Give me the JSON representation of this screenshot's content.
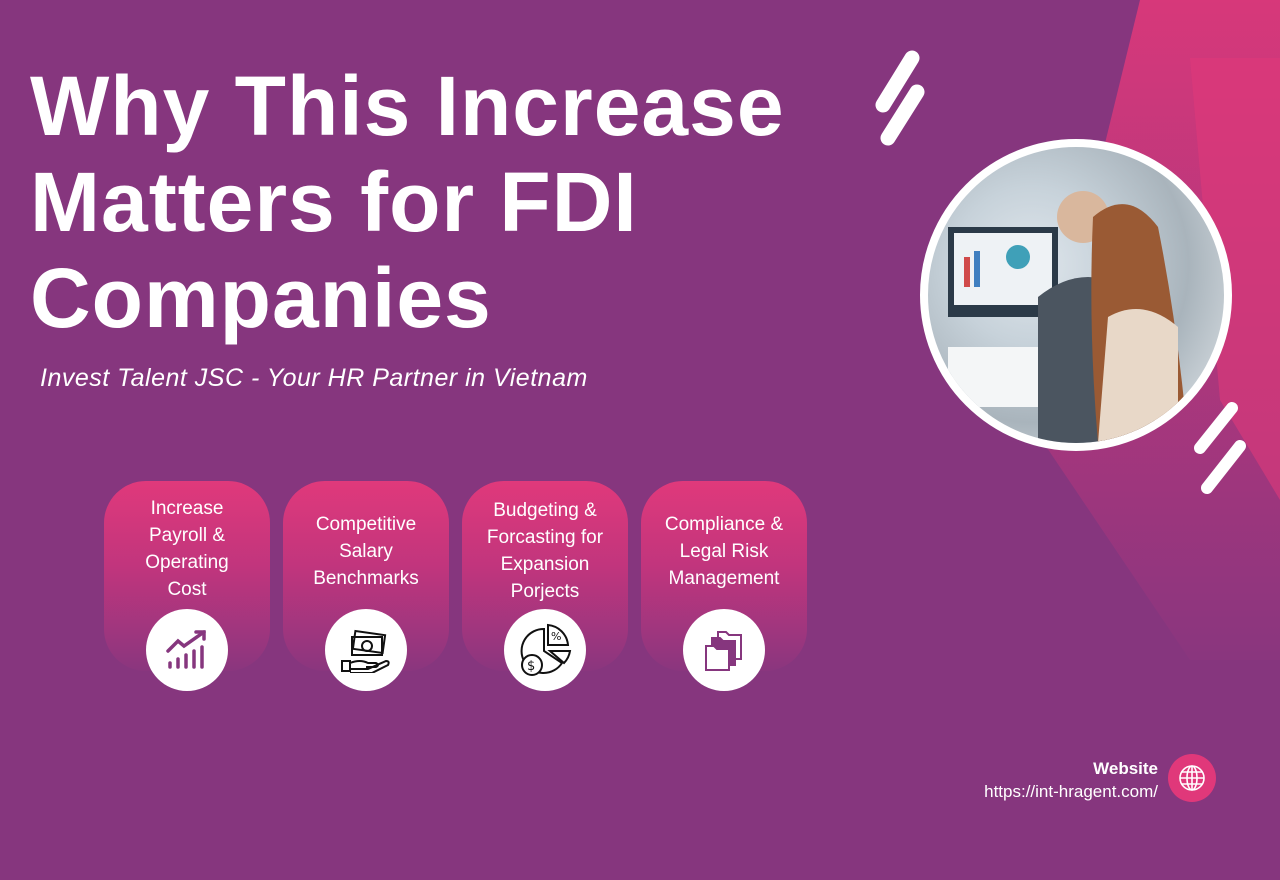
{
  "title_lines": [
    "Why This Increase",
    "Matters for FDI",
    "Companies"
  ],
  "subtitle": "Invest Talent JSC - Your HR Partner in Vietnam",
  "cards": [
    {
      "label": "Increase Payroll & Operating Cost",
      "icon": "growth-chart-icon"
    },
    {
      "label": "Competitive Salary Benchmarks",
      "icon": "money-hand-icon"
    },
    {
      "label": "Budgeting & Forcasting for Expansion Porjects",
      "icon": "pie-chart-dollar-icon"
    },
    {
      "label": "Compliance & Legal Risk Management",
      "icon": "folders-icon"
    }
  ],
  "website": {
    "label": "Website",
    "url": "https://int-hragent.com/",
    "icon": "globe-icon"
  },
  "colors": {
    "background": "#86367e",
    "accent": "#e0387a"
  }
}
